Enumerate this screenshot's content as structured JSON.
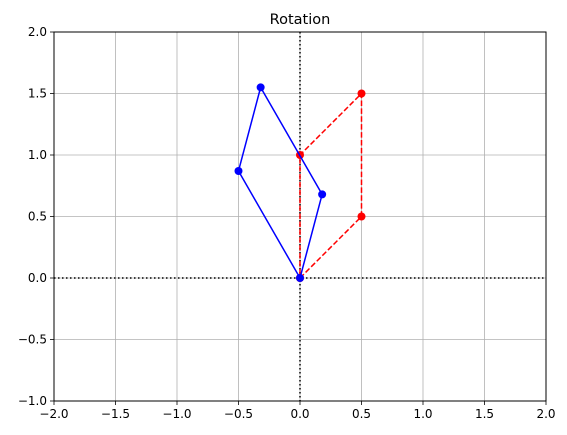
{
  "chart_data": {
    "type": "line",
    "title": "Rotation",
    "xlabel": "",
    "ylabel": "",
    "xlim": [
      -2.0,
      2.0
    ],
    "ylim": [
      -1.0,
      2.0
    ],
    "xticks": [
      -2.0,
      -1.5,
      -1.0,
      -0.5,
      0.0,
      0.5,
      1.0,
      1.5,
      2.0
    ],
    "yticks": [
      -1.0,
      -0.5,
      0.0,
      0.5,
      1.0,
      1.5,
      2.0
    ],
    "xtick_labels": [
      "−2.0",
      "−1.5",
      "−1.0",
      "−0.5",
      "0.0",
      "0.5",
      "1.0",
      "1.5",
      "2.0"
    ],
    "ytick_labels": [
      "−1.0",
      "−0.5",
      "0.0",
      "0.5",
      "1.0",
      "1.5",
      "2.0"
    ],
    "grid": true,
    "reference_lines": {
      "x": 0,
      "y": 0,
      "style": "dotted",
      "color": "#000000"
    },
    "series": [
      {
        "style": "dashed",
        "color": "#ff0000",
        "marker": "circle",
        "x": [
          0.0,
          0.5,
          0.5,
          0.0
        ],
        "y": [
          0.0,
          0.5,
          1.5,
          1.0
        ],
        "closed": true
      },
      {
        "style": "solid",
        "color": "#0000ff",
        "marker": "circle",
        "x": [
          0.0,
          0.18,
          -0.32,
          -0.5
        ],
        "y": [
          0.0,
          0.68,
          1.55,
          0.87
        ],
        "closed": true
      }
    ]
  }
}
